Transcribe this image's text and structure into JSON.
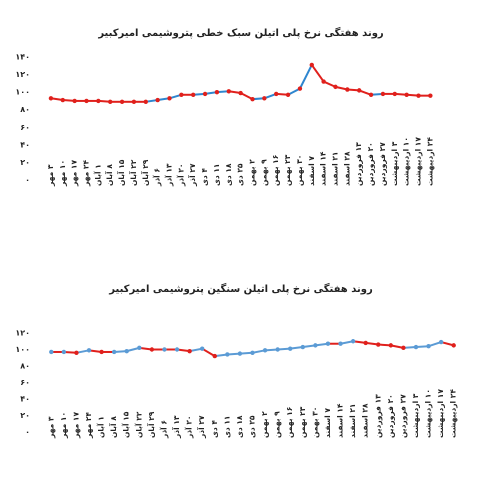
{
  "chart_data": [
    {
      "type": "line",
      "title": "روند هفتگی نرخ پلی اتیلن سبک خطی پتروشیمی امیرکبیر",
      "categories": [
        "۳ مهر",
        "۱۰ مهر",
        "۱۷ مهر",
        "۲۴ مهر",
        "۱ آبان",
        "۸ آبان",
        "۱۵ آبان",
        "۲۲ آبان",
        "۲۹ آبان",
        "۶ آذر",
        "۱۳ آذر",
        "۲۰ آذر",
        "۲۷ آذر",
        "۴ دی",
        "۱۱ دی",
        "۱۸ دی",
        "۲۵ دی",
        "۲ بهمن",
        "۹ بهمن",
        "۱۶ بهمن",
        "۲۳ بهمن",
        "۳۰ بهمن",
        "۷ اسفند",
        "۱۴ اسفند",
        "۲۱ اسفند",
        "۲۸ اسفند",
        "۱۳ فروردین",
        "۲۰ فروردین",
        "۲۷ فروردین",
        "۳ اردیبهشت",
        "۱۰ اردیبهشت",
        "۱۷ اردیبهشت",
        "۲۴ اردیبهشت",
        null,
        null
      ],
      "values": [
        93,
        91,
        90,
        90,
        90,
        89,
        89,
        89,
        89,
        91,
        93,
        97,
        97,
        98,
        100,
        101,
        99,
        92,
        93,
        98,
        97,
        104,
        131,
        112,
        106,
        103,
        102,
        97,
        98,
        98,
        97,
        96,
        96,
        null,
        null
      ],
      "up_color": "#2e86cf",
      "down_color": "#e0201c",
      "marker_color": "#e0201c",
      "ylim": [
        0,
        140
      ],
      "yticks": [
        {
          "value": 0,
          "label": "۰"
        },
        {
          "value": 20,
          "label": "۲۰"
        },
        {
          "value": 40,
          "label": "۴۰"
        },
        {
          "value": 60,
          "label": "۶۰"
        },
        {
          "value": 80,
          "label": "۸۰"
        },
        {
          "value": 100,
          "label": "۱۰۰"
        },
        {
          "value": 120,
          "label": "۱۲۰"
        },
        {
          "value": 140,
          "label": "۱۴۰"
        }
      ],
      "grid": false
    },
    {
      "type": "line",
      "title": "روند هفتگی نرخ پلی اتیلن سنگین پتروشیمی امیرکبیر",
      "categories": [
        "۳ مهر",
        "۱۰ مهر",
        "۱۷ مهر",
        "۲۴ مهر",
        "۱ آبان",
        "۸ آبان",
        "۱۵ آبان",
        "۲۲ آبان",
        "۲۹ آبان",
        "۶ آذر",
        "۱۳ آذر",
        "۲۰ آذر",
        "۲۷ آذر",
        "۴ دی",
        "۱۱ دی",
        "۱۸ دی",
        "۲۵ دی",
        "۲ بهمن",
        "۹ بهمن",
        "۱۶ بهمن",
        "۲۳ بهمن",
        "۳۰ بهمن",
        "۷ اسفند",
        "۱۴ اسفند",
        "۲۱ اسفند",
        "۲۸ اسفند",
        "۱۳ فروردین",
        "۲۰ فروردین",
        "۲۷ فروردین",
        "۳ اردیبهشت",
        "۱۰ اردیبهشت",
        "۱۷ اردیبهشت",
        "۲۴ اردیبهشت"
      ],
      "values": [
        97,
        97,
        96,
        99,
        97,
        97,
        98,
        102,
        100,
        100,
        100,
        98,
        101,
        92,
        94,
        95,
        96,
        99,
        100,
        101,
        103,
        105,
        107,
        107,
        110,
        108,
        106,
        105,
        102,
        103,
        104,
        109,
        105
      ],
      "up_color": "#5b9bd5",
      "down_color": "#e0201c",
      "marker_color": "#5b9bd5",
      "ylim": [
        0,
        120
      ],
      "yticks": [
        {
          "value": 0,
          "label": "۰"
        },
        {
          "value": 20,
          "label": "۲۰"
        },
        {
          "value": 40,
          "label": "۴۰"
        },
        {
          "value": 60,
          "label": "۶۰"
        },
        {
          "value": 80,
          "label": "۸۰"
        },
        {
          "value": 100,
          "label": "۱۰۰"
        },
        {
          "value": 120,
          "label": "۱۲۰"
        }
      ],
      "grid": false
    }
  ]
}
